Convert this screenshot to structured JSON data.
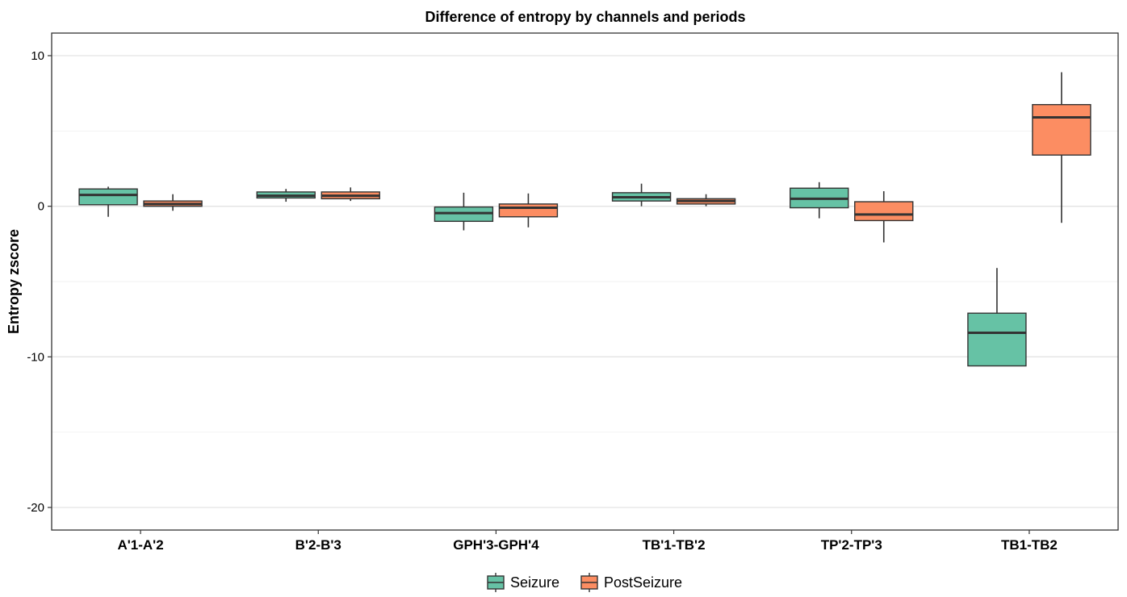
{
  "chart_data": {
    "type": "boxplot",
    "title": "Difference of entropy by channels and periods",
    "xlabel": "",
    "ylabel": "Entropy zscore",
    "ylim": [
      -21.5,
      11.5
    ],
    "yticks": [
      10,
      0,
      -10,
      -20
    ],
    "ytick_labels": [
      "10",
      "0",
      "-10",
      "-20"
    ],
    "grid": true,
    "legend_position": "bottom",
    "categories": [
      "A'1-A'2",
      "B'2-B'3",
      "GPH'3-GPH'4",
      "TB'1-TB'2",
      "TP'2-TP'3",
      "TB1-TB2"
    ],
    "series": [
      {
        "name": "Seizure",
        "color": "#66c2a5",
        "boxes": [
          {
            "min": -0.7,
            "q1": 0.1,
            "median": 0.75,
            "q3": 1.15,
            "max": 1.3
          },
          {
            "min": 0.3,
            "q1": 0.55,
            "median": 0.7,
            "q3": 0.95,
            "max": 1.15
          },
          {
            "min": -1.6,
            "q1": -1.0,
            "median": -0.45,
            "q3": -0.05,
            "max": 0.9
          },
          {
            "min": 0.0,
            "q1": 0.35,
            "median": 0.6,
            "q3": 0.9,
            "max": 1.5
          },
          {
            "min": -0.8,
            "q1": -0.1,
            "median": 0.5,
            "q3": 1.2,
            "max": 1.6
          },
          {
            "min": -10.6,
            "q1": -10.6,
            "median": -8.4,
            "q3": -7.1,
            "max": -4.1
          }
        ]
      },
      {
        "name": "PostSeizure",
        "color": "#fc8d62",
        "boxes": [
          {
            "min": -0.3,
            "q1": 0.0,
            "median": 0.15,
            "q3": 0.35,
            "max": 0.8
          },
          {
            "min": 0.35,
            "q1": 0.5,
            "median": 0.7,
            "q3": 0.95,
            "max": 1.25
          },
          {
            "min": -1.4,
            "q1": -0.7,
            "median": -0.1,
            "q3": 0.15,
            "max": 0.85
          },
          {
            "min": 0.0,
            "q1": 0.15,
            "median": 0.35,
            "q3": 0.5,
            "max": 0.8
          },
          {
            "min": -2.4,
            "q1": -0.95,
            "median": -0.55,
            "q3": 0.3,
            "max": 1.0
          },
          {
            "min": -1.1,
            "q1": 3.4,
            "median": 5.9,
            "q3": 6.75,
            "max": 8.9
          }
        ]
      }
    ]
  }
}
